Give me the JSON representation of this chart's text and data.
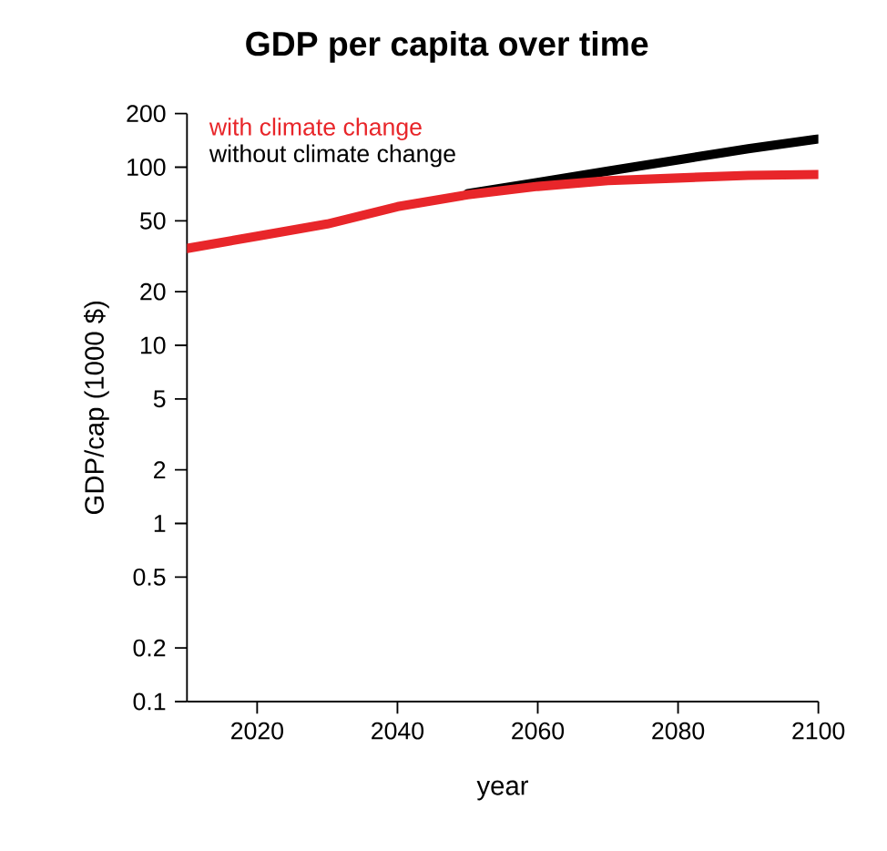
{
  "chart_data": {
    "type": "line",
    "title": "GDP per capita over time",
    "xlabel": "year",
    "ylabel": "GDP/cap (1000 $)",
    "log": "y",
    "grid": false,
    "legend": "top left",
    "line_style": "solid",
    "marker": "none",
    "xlim": [
      2010,
      2100
    ],
    "xticks": [
      2020,
      2040,
      2060,
      2080,
      2100
    ],
    "ylim": [
      0.1,
      200
    ],
    "yticks": [
      0.1,
      0.2,
      0.5,
      1,
      2,
      5,
      10,
      20,
      50,
      100,
      200
    ],
    "x": [
      2010,
      2020,
      2030,
      2040,
      2050,
      2060,
      2070,
      2080,
      2090,
      2100
    ],
    "series": [
      {
        "name": "without climate change",
        "color": "#000000",
        "values": [
          null,
          null,
          null,
          null,
          71,
          82,
          95,
          110,
          127,
          144
        ]
      },
      {
        "name": "with climate change",
        "color": "#e8262a",
        "values": [
          35,
          41,
          48,
          60,
          70,
          78,
          84,
          87,
          90,
          91
        ]
      }
    ]
  }
}
